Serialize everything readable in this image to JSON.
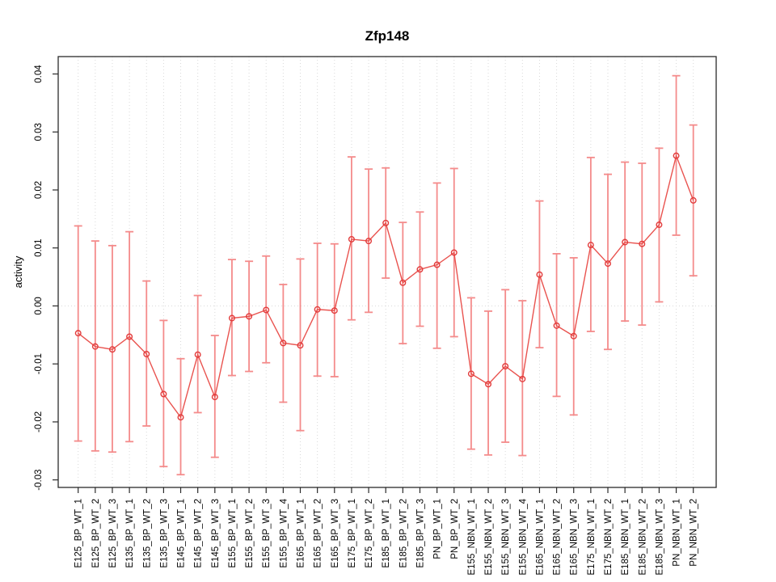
{
  "chart_data": {
    "type": "scatter",
    "title": "Zfp148",
    "xlabel": "",
    "ylabel": "activity",
    "legend_position": "none",
    "marker": "open-circle",
    "grid": {
      "vertical_dotted": true,
      "horizontal_zero_dotted": true
    },
    "ylim": [
      -0.0313,
      0.043
    ],
    "yticks": [
      -0.03,
      -0.02,
      -0.01,
      0.0,
      0.01,
      0.02,
      0.03,
      0.04
    ],
    "ytick_labels": [
      "-0.03",
      "-0.02",
      "-0.01",
      "0.00",
      "0.01",
      "0.02",
      "0.03",
      "0.04"
    ],
    "categories": [
      "E125_BP_WT_1",
      "E125_BP_WT_2",
      "E125_BP_WT_3",
      "E135_BP_WT_1",
      "E135_BP_WT_2",
      "E135_BP_WT_3",
      "E145_BP_WT_1",
      "E145_BP_WT_2",
      "E145_BP_WT_3",
      "E155_BP_WT_1",
      "E155_BP_WT_2",
      "E155_BP_WT_3",
      "E155_BP_WT_4",
      "E165_BP_WT_1",
      "E165_BP_WT_2",
      "E165_BP_WT_3",
      "E175_BP_WT_1",
      "E175_BP_WT_2",
      "E185_BP_WT_1",
      "E185_BP_WT_2",
      "E185_BP_WT_3",
      "PN_BP_WT_1",
      "PN_BP_WT_2",
      "E155_NBN_WT_1",
      "E155_NBN_WT_2",
      "E155_NBN_WT_3",
      "E155_NBN_WT_4",
      "E165_NBN_WT_1",
      "E165_NBN_WT_2",
      "E165_NBN_WT_3",
      "E175_NBN_WT_1",
      "E175_NBN_WT_2",
      "E185_NBN_WT_1",
      "E185_NBN_WT_2",
      "E185_NBN_WT_3",
      "PN_NBN_WT_1",
      "PN_NBN_WT_2"
    ],
    "series": [
      {
        "name": "activity",
        "values": [
          -0.0047,
          -0.007,
          -0.0075,
          -0.0053,
          -0.0083,
          -0.0152,
          -0.0192,
          -0.0084,
          -0.0157,
          -0.0021,
          -0.0018,
          -0.0007,
          -0.0064,
          -0.0068,
          -0.0006,
          -0.0008,
          0.0115,
          0.0112,
          0.0143,
          0.004,
          0.0063,
          0.0071,
          0.0092,
          -0.0117,
          -0.0135,
          -0.0104,
          -0.0126,
          0.0054,
          -0.0034,
          -0.0052,
          0.0105,
          0.0073,
          0.011,
          0.0107,
          0.014,
          0.0259,
          0.0182
        ],
        "ci_lower": [
          -0.0233,
          -0.025,
          -0.0252,
          -0.0234,
          -0.0207,
          -0.0277,
          -0.0291,
          -0.0184,
          -0.0261,
          -0.012,
          -0.0113,
          -0.0098,
          -0.0166,
          -0.0215,
          -0.0121,
          -0.0122,
          -0.0024,
          -0.0011,
          0.0048,
          -0.0065,
          -0.0035,
          -0.0073,
          -0.0053,
          -0.0247,
          -0.0257,
          -0.0235,
          -0.0258,
          -0.0072,
          -0.0156,
          -0.0188,
          -0.0044,
          -0.0075,
          -0.0026,
          -0.0033,
          0.0007,
          0.0122,
          0.0052
        ],
        "ci_upper": [
          0.0138,
          0.0112,
          0.0104,
          0.0128,
          0.0043,
          -0.0025,
          -0.0091,
          0.0018,
          -0.0051,
          0.008,
          0.0077,
          0.0086,
          0.0037,
          0.0081,
          0.0108,
          0.0107,
          0.0257,
          0.0236,
          0.0238,
          0.0144,
          0.0162,
          0.0212,
          0.0237,
          0.0014,
          -0.0009,
          0.0028,
          0.0009,
          0.0181,
          0.009,
          0.0083,
          0.0256,
          0.0227,
          0.0248,
          0.0246,
          0.0272,
          0.0397,
          0.0312
        ]
      }
    ],
    "colors": {
      "error_bar": "#f48b8b",
      "series_line": "#e9534f",
      "marker_stroke": "#e23c3c",
      "gridline": "#d9d9d9",
      "axis_box": "#2b2b2b",
      "text": "#000000",
      "background": "#ffffff"
    }
  }
}
